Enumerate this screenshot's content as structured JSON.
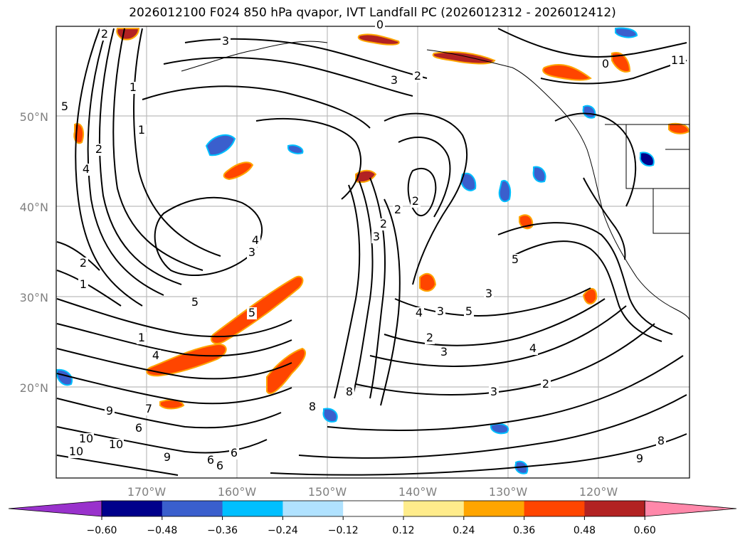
{
  "title": "2026012100 F024 850 hPa qvapor, IVT Landfall PC (2026012312 - 2026012412)",
  "lat_labels": [
    "50°N",
    "40°N",
    "30°N",
    "20°N"
  ],
  "lon_labels": [
    "170°W",
    "160°W",
    "150°W",
    "140°W",
    "130°W",
    "120°W"
  ],
  "colorbar": {
    "ticks": [
      "−0.60",
      "−0.48",
      "−0.36",
      "−0.24",
      "−0.12",
      "0.12",
      "0.24",
      "0.36",
      "0.48",
      "0.60"
    ],
    "colors": [
      "#9932cc",
      "#00008b",
      "#3a5fcd",
      "#00bfff",
      "#b0e2ff",
      "#ffffff",
      "#ffec8b",
      "#ffa500",
      "#ff4500",
      "#b22222",
      "#ff88aa"
    ]
  },
  "contour_labels": [
    "3",
    "2",
    "3",
    "1",
    "5",
    "1",
    "2",
    "0",
    "4",
    "3",
    "4",
    "2",
    "3",
    "2",
    "1",
    "2",
    "5",
    "5",
    "4",
    "1",
    "2",
    "4",
    "3",
    "5",
    "5",
    "3",
    "3",
    "4",
    "2",
    "3",
    "9",
    "7",
    "6",
    "9",
    "10",
    "10",
    "10",
    "6",
    "8",
    "8",
    "6",
    "6",
    "8",
    "9",
    "11",
    "0",
    "2",
    "2"
  ],
  "colors": {
    "coast": "#000000",
    "grid": "#bcbcbc",
    "contour": "#000000"
  }
}
